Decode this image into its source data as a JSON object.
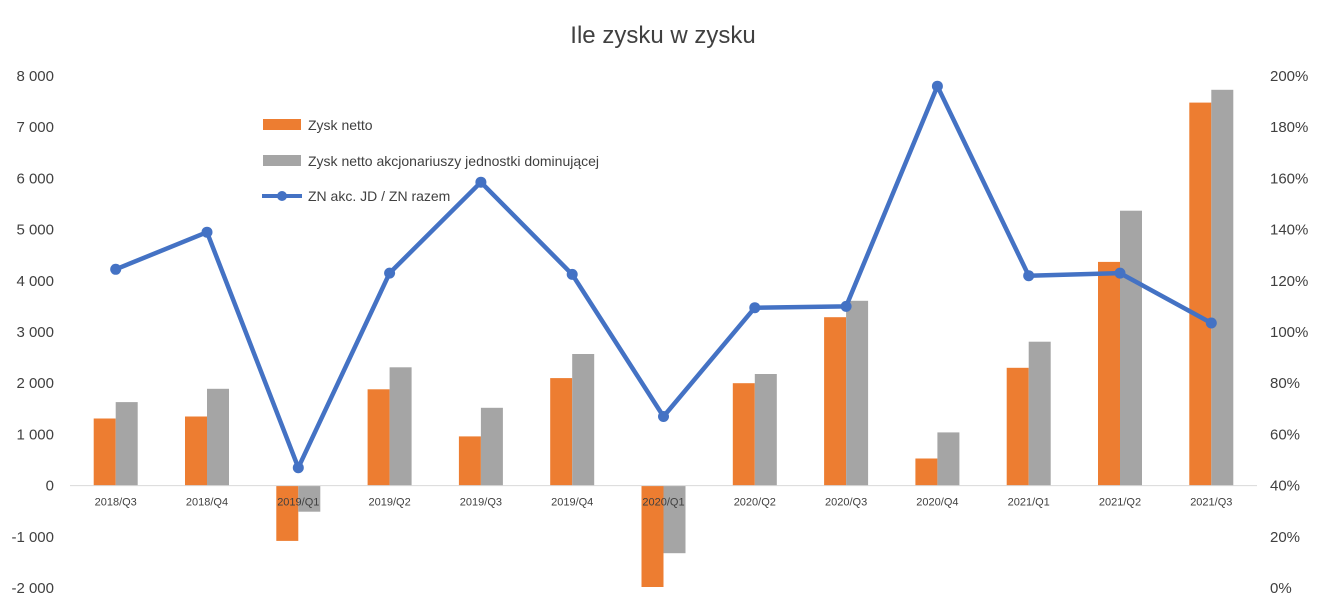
{
  "chart_data": {
    "type": "bar",
    "title": "Ile zysku w zysku",
    "categories": [
      "2018/Q3",
      "2018/Q4",
      "2019/Q1",
      "2019/Q2",
      "2019/Q3",
      "2019/Q4",
      "2020/Q1",
      "2020/Q2",
      "2020/Q3",
      "2020/Q4",
      "2021/Q1",
      "2021/Q2",
      "2021/Q3"
    ],
    "series": [
      {
        "name": "Zysk netto",
        "type": "bar",
        "axis": "left",
        "color": "#ED7D31",
        "values": [
          1310,
          1350,
          -1080,
          1880,
          960,
          2100,
          -1980,
          2000,
          3290,
          530,
          2300,
          4370,
          7480
        ]
      },
      {
        "name": "Zysk netto akcjonariuszy jednostki dominującej",
        "type": "bar",
        "axis": "left",
        "color": "#A5A5A5",
        "values": [
          1630,
          1890,
          -510,
          2310,
          1520,
          2570,
          -1320,
          2180,
          3610,
          1040,
          2810,
          5370,
          7730
        ]
      },
      {
        "name": "ZN akc. JD / ZN razem",
        "type": "line",
        "axis": "right",
        "color": "#4472C4",
        "values": [
          1.245,
          1.39,
          0.47,
          1.23,
          1.585,
          1.225,
          0.67,
          1.095,
          1.1,
          1.96,
          1.22,
          1.23,
          1.035
        ]
      }
    ],
    "ylim_left": [
      -2000,
      8000
    ],
    "ylim_right": [
      0,
      2
    ],
    "yticks_left": [
      "-2 000",
      "-1 000",
      "0",
      "1 000",
      "2 000",
      "3 000",
      "4 000",
      "5 000",
      "6 000",
      "7 000",
      "8 000"
    ],
    "yticks_right": [
      "0%",
      "20%",
      "40%",
      "60%",
      "80%",
      "100%",
      "120%",
      "140%",
      "160%",
      "180%",
      "200%"
    ],
    "grid": false,
    "legend_position": "upper-left inside plot"
  }
}
